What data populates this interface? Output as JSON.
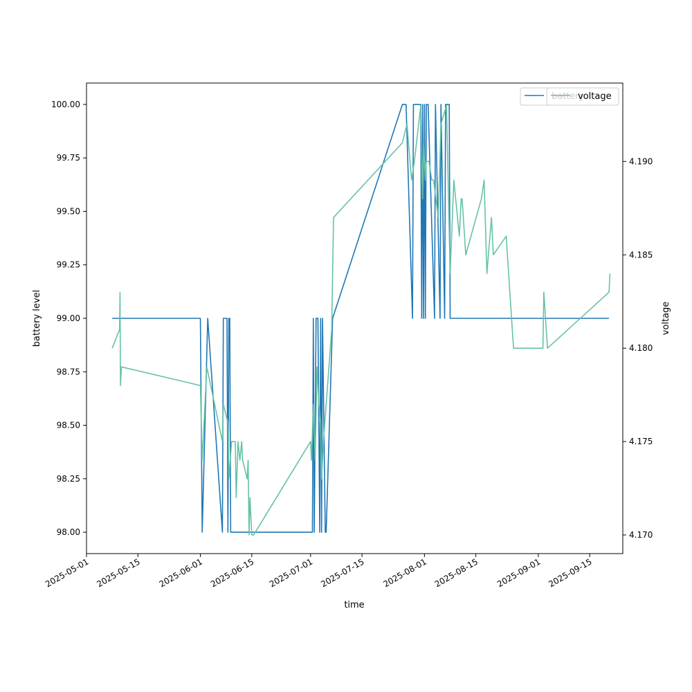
{
  "chart_data": {
    "type": "line",
    "xlabel": "time",
    "ylabel": "battery level",
    "y2label": "voltage",
    "xlim": [
      "2025-05-01",
      "2025-09-24"
    ],
    "ylim": [
      97.9,
      100.1
    ],
    "y2lim": [
      4.169,
      4.1942
    ],
    "xticks": [
      {
        "date": "2025-05-01",
        "label": "2025-05-01"
      },
      {
        "date": "2025-05-15",
        "label": "2025-05-15"
      },
      {
        "date": "2025-06-01",
        "label": "2025-06-01"
      },
      {
        "date": "2025-06-15",
        "label": "2025-06-15"
      },
      {
        "date": "2025-07-01",
        "label": "2025-07-01"
      },
      {
        "date": "2025-07-15",
        "label": "2025-07-15"
      },
      {
        "date": "2025-08-01",
        "label": "2025-08-01"
      },
      {
        "date": "2025-08-15",
        "label": "2025-08-15"
      },
      {
        "date": "2025-09-01",
        "label": "2025-09-01"
      },
      {
        "date": "2025-09-15",
        "label": "2025-09-15"
      }
    ],
    "yticks": [
      {
        "value": 98.0,
        "label": "98.00"
      },
      {
        "value": 98.25,
        "label": "98.25"
      },
      {
        "value": 98.5,
        "label": "98.50"
      },
      {
        "value": 98.75,
        "label": "98.75"
      },
      {
        "value": 99.0,
        "label": "99.00"
      },
      {
        "value": 99.25,
        "label": "99.25"
      },
      {
        "value": 99.5,
        "label": "99.50"
      },
      {
        "value": 99.75,
        "label": "99.75"
      },
      {
        "value": 100.0,
        "label": "100.00"
      }
    ],
    "y2ticks": [
      {
        "value": 4.17,
        "label": "4.170"
      },
      {
        "value": 4.175,
        "label": "4.175"
      },
      {
        "value": 4.18,
        "label": "4.180"
      },
      {
        "value": 4.185,
        "label": "4.185"
      },
      {
        "value": 4.19,
        "label": "4.190"
      }
    ],
    "legend_position": "top-right",
    "series": [
      {
        "name": "battery",
        "axis": "left",
        "color": "#1f77b4",
        "points": [
          [
            "2025-05-08",
            99
          ],
          [
            "2025-06-01",
            99
          ],
          [
            "2025-06-01 12:00",
            98
          ],
          [
            "2025-06-03",
            99
          ],
          [
            "2025-06-07",
            98
          ],
          [
            "2025-06-07 06:00",
            99
          ],
          [
            "2025-06-08 06:00",
            99
          ],
          [
            "2025-06-08 12:00",
            98
          ],
          [
            "2025-06-08 18:00",
            99
          ],
          [
            "2025-06-09",
            99
          ],
          [
            "2025-06-09 06:00",
            98
          ],
          [
            "2025-07-01 12:00",
            98
          ],
          [
            "2025-07-01 18:00",
            99
          ],
          [
            "2025-07-02",
            98
          ],
          [
            "2025-07-02 12:00",
            99
          ],
          [
            "2025-07-03",
            99
          ],
          [
            "2025-07-03 06:00",
            98.5
          ],
          [
            "2025-07-03 12:00",
            98
          ],
          [
            "2025-07-03 18:00",
            99
          ],
          [
            "2025-07-04",
            98
          ],
          [
            "2025-07-04 06:00",
            99
          ],
          [
            "2025-07-05",
            98
          ],
          [
            "2025-07-05 06:00",
            98
          ],
          [
            "2025-07-07",
            99
          ],
          [
            "2025-07-26",
            100
          ],
          [
            "2025-07-27",
            100
          ],
          [
            "2025-07-28 18:00",
            99
          ],
          [
            "2025-07-29",
            100
          ],
          [
            "2025-07-31",
            100
          ],
          [
            "2025-07-31 06:00",
            99
          ],
          [
            "2025-07-31 12:00",
            100
          ],
          [
            "2025-07-31 18:00",
            99
          ],
          [
            "2025-08-01",
            100
          ],
          [
            "2025-08-01 06:00",
            99
          ],
          [
            "2025-08-01 12:00",
            100
          ],
          [
            "2025-08-02",
            100
          ],
          [
            "2025-08-03 18:00",
            99
          ],
          [
            "2025-08-04",
            100
          ],
          [
            "2025-08-05 06:00",
            99
          ],
          [
            "2025-08-05 12:00",
            100
          ],
          [
            "2025-08-06 12:00",
            99
          ],
          [
            "2025-08-06 18:00",
            100
          ],
          [
            "2025-08-07 18:00",
            100
          ],
          [
            "2025-08-08",
            99
          ],
          [
            "2025-08-09 06:00",
            99
          ],
          [
            "2025-09-20 06:00",
            99
          ]
        ]
      },
      {
        "name": "voltage",
        "axis": "right",
        "color": "#66c2a5",
        "points": [
          [
            "2025-05-08",
            4.18
          ],
          [
            "2025-05-10",
            4.181
          ],
          [
            "2025-05-10 03:00",
            4.183
          ],
          [
            "2025-05-10 06:00",
            4.178
          ],
          [
            "2025-05-10 12:00",
            4.179
          ],
          [
            "2025-06-01",
            4.178
          ],
          [
            "2025-06-01 12:00",
            4.174
          ],
          [
            "2025-06-02 18:00",
            4.179
          ],
          [
            "2025-06-07",
            4.175
          ],
          [
            "2025-06-07 06:00",
            4.177
          ],
          [
            "2025-06-08 12:00",
            4.176
          ],
          [
            "2025-06-08 18:00",
            4.173
          ],
          [
            "2025-06-09 12:00",
            4.175
          ],
          [
            "2025-06-10 12:00",
            4.175
          ],
          [
            "2025-06-10 18:00",
            4.172
          ],
          [
            "2025-06-11 06:00",
            4.175
          ],
          [
            "2025-06-11 18:00",
            4.174
          ],
          [
            "2025-06-12 06:00",
            4.175
          ],
          [
            "2025-06-12 12:00",
            4.174
          ],
          [
            "2025-06-13 18:00",
            4.173
          ],
          [
            "2025-06-14",
            4.174
          ],
          [
            "2025-06-14 06:00",
            4.17
          ],
          [
            "2025-06-14 12:00",
            4.172
          ],
          [
            "2025-06-15",
            4.17
          ],
          [
            "2025-06-15 12:00",
            4.17
          ],
          [
            "2025-07-01",
            4.175
          ],
          [
            "2025-07-01 06:00",
            4.174
          ],
          [
            "2025-07-01 18:00",
            4.177
          ],
          [
            "2025-07-02 06:00",
            4.174
          ],
          [
            "2025-07-02 18:00",
            4.179
          ],
          [
            "2025-07-03 06:00",
            4.177
          ],
          [
            "2025-07-03 18:00",
            4.176
          ],
          [
            "2025-07-04",
            4.173
          ],
          [
            "2025-07-04 12:00",
            4.175
          ],
          [
            "2025-07-06 18:00",
            4.181
          ],
          [
            "2025-07-07 06:00",
            4.187
          ],
          [
            "2025-07-26",
            4.191
          ],
          [
            "2025-07-27 06:00",
            4.192
          ],
          [
            "2025-07-28 12:00",
            4.189
          ],
          [
            "2025-07-29 06:00",
            4.19
          ],
          [
            "2025-07-31",
            4.193
          ],
          [
            "2025-07-31 12:00",
            4.188
          ],
          [
            "2025-07-31 18:00",
            4.191
          ],
          [
            "2025-08-01 06:00",
            4.189
          ],
          [
            "2025-08-01 12:00",
            4.19
          ],
          [
            "2025-08-02 06:00",
            4.19
          ],
          [
            "2025-08-03",
            4.189
          ],
          [
            "2025-08-03 12:00",
            4.189
          ],
          [
            "2025-08-04 18:00",
            4.187
          ],
          [
            "2025-08-05 12:00",
            4.192
          ],
          [
            "2025-08-07",
            4.193
          ],
          [
            "2025-08-08",
            4.184
          ],
          [
            "2025-08-09",
            4.189
          ],
          [
            "2025-08-10 12:00",
            4.186
          ],
          [
            "2025-08-11",
            4.188
          ],
          [
            "2025-08-11 06:00",
            4.188
          ],
          [
            "2025-08-12 06:00",
            4.185
          ],
          [
            "2025-08-16 12:00",
            4.188
          ],
          [
            "2025-08-17 06:00",
            4.189
          ],
          [
            "2025-08-18",
            4.184
          ],
          [
            "2025-08-19 06:00",
            4.187
          ],
          [
            "2025-08-19 18:00",
            4.185
          ],
          [
            "2025-08-23 06:00",
            4.186
          ],
          [
            "2025-08-25 06:00",
            4.18
          ],
          [
            "2025-09-02 06:00",
            4.18
          ],
          [
            "2025-09-02 12:00",
            4.183
          ],
          [
            "2025-09-03 12:00",
            4.18
          ],
          [
            "2025-09-20 06:00",
            4.183
          ],
          [
            "2025-09-20 12:00",
            4.184
          ]
        ]
      }
    ],
    "legends": [
      {
        "label": "battery",
        "color": "#1f77b4"
      },
      {
        "label": "voltage",
        "color": "#66c2a5"
      }
    ]
  }
}
